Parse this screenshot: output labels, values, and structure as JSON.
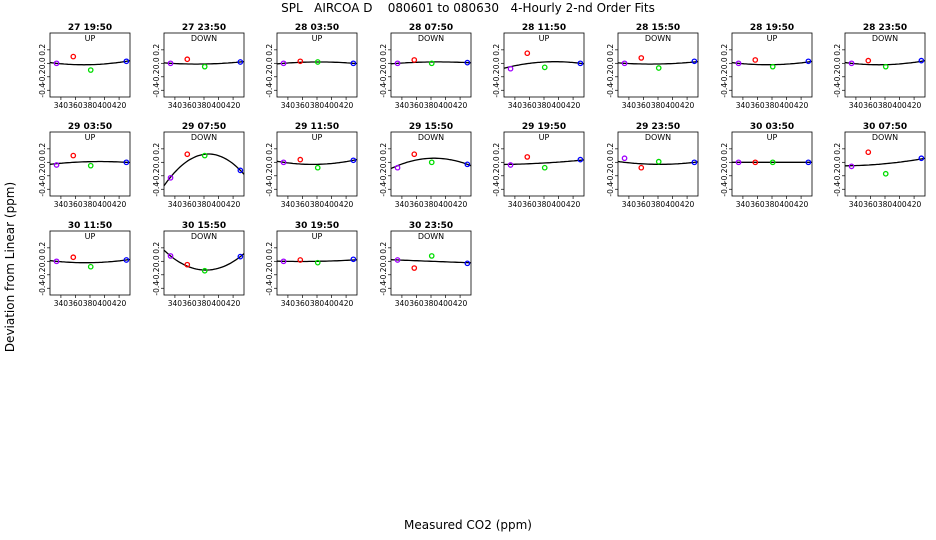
{
  "title": "SPL   AIRCOA D    080601 to 080630   4-Hourly 2-nd Order Fits",
  "xlabel": "Measured CO2 (ppm)",
  "ylabel": "Deviation from Linear (ppm)",
  "colors": {
    "p1": "#a000ff",
    "p2": "#ff0000",
    "p3": "#00dd00",
    "p4": "#0000ff",
    "curve": "#000000"
  },
  "chart_data": {
    "type": "scatter",
    "layout": "small-multiples",
    "xlim": [
      325,
      435
    ],
    "ylim": [
      -0.5,
      0.45
    ],
    "xticks": [
      340,
      360,
      380,
      400,
      420
    ],
    "yticks": [
      -0.4,
      -0.2,
      0.0,
      0.2
    ],
    "panels": [
      {
        "title": "27 19:50",
        "mode": "UP",
        "x": [
          334,
          357,
          381,
          430
        ],
        "y": [
          0.0,
          0.1,
          -0.1,
          0.03
        ],
        "curve": [
          0.0,
          -0.01,
          -0.02,
          0.03
        ]
      },
      {
        "title": "27 23:50",
        "mode": "DOWN",
        "x": [
          334,
          357,
          381,
          430
        ],
        "y": [
          0.0,
          0.06,
          -0.05,
          0.02
        ],
        "curve": [
          0.0,
          0.0,
          -0.01,
          0.02
        ]
      },
      {
        "title": "28 03:50",
        "mode": "UP",
        "x": [
          334,
          357,
          381,
          430
        ],
        "y": [
          0.0,
          0.03,
          0.02,
          0.0
        ],
        "curve": [
          0.0,
          0.02,
          0.02,
          0.0
        ]
      },
      {
        "title": "28 07:50",
        "mode": "DOWN",
        "x": [
          334,
          357,
          381,
          430
        ],
        "y": [
          0.0,
          0.05,
          0.0,
          0.01
        ],
        "curve": [
          0.0,
          0.015,
          0.02,
          0.01
        ]
      },
      {
        "title": "28 11:50",
        "mode": "UP",
        "x": [
          334,
          357,
          381,
          430
        ],
        "y": [
          -0.08,
          0.15,
          -0.06,
          0.0
        ],
        "curve": [
          -0.05,
          0.0,
          0.02,
          0.0
        ]
      },
      {
        "title": "28 15:50",
        "mode": "DOWN",
        "x": [
          334,
          357,
          381,
          430
        ],
        "y": [
          0.0,
          0.08,
          -0.07,
          0.03
        ],
        "curve": [
          0.0,
          -0.005,
          -0.01,
          0.02
        ]
      },
      {
        "title": "28 19:50",
        "mode": "UP",
        "x": [
          334,
          357,
          381,
          430
        ],
        "y": [
          0.0,
          0.05,
          -0.05,
          0.03
        ],
        "curve": [
          0.0,
          0.0,
          -0.02,
          0.02
        ]
      },
      {
        "title": "28 23:50",
        "mode": "DOWN",
        "x": [
          334,
          357,
          381,
          430
        ],
        "y": [
          0.0,
          0.04,
          -0.05,
          0.04
        ],
        "curve": [
          0.0,
          0.0,
          -0.02,
          0.03
        ]
      },
      {
        "title": "29 03:50",
        "mode": "UP",
        "x": [
          334,
          357,
          381,
          430
        ],
        "y": [
          -0.04,
          0.1,
          -0.05,
          0.0
        ],
        "curve": [
          -0.02,
          0.01,
          0.01,
          0.0
        ]
      },
      {
        "title": "29 07:50",
        "mode": "DOWN",
        "x": [
          334,
          357,
          381,
          430
        ],
        "y": [
          -0.23,
          0.12,
          0.1,
          -0.12
        ],
        "curve": [
          -0.22,
          0.05,
          0.12,
          -0.12
        ]
      },
      {
        "title": "29 11:50",
        "mode": "UP",
        "x": [
          334,
          357,
          381,
          430
        ],
        "y": [
          0.0,
          0.04,
          -0.08,
          0.03
        ],
        "curve": [
          0.0,
          -0.02,
          -0.03,
          0.03
        ]
      },
      {
        "title": "29 15:50",
        "mode": "DOWN",
        "x": [
          334,
          357,
          381,
          430
        ],
        "y": [
          -0.08,
          0.12,
          0.0,
          -0.03
        ],
        "curve": [
          -0.05,
          0.04,
          0.06,
          -0.03
        ]
      },
      {
        "title": "29 19:50",
        "mode": "UP",
        "x": [
          334,
          357,
          381,
          430
        ],
        "y": [
          -0.04,
          0.08,
          -0.08,
          0.04
        ],
        "curve": [
          -0.03,
          -0.01,
          -0.01,
          0.03
        ]
      },
      {
        "title": "29 23:50",
        "mode": "DOWN",
        "x": [
          334,
          357,
          381,
          430
        ],
        "y": [
          0.06,
          -0.08,
          0.01,
          0.0
        ],
        "curve": [
          0.0,
          -0.03,
          -0.03,
          0.0
        ]
      },
      {
        "title": "30 03:50",
        "mode": "UP",
        "x": [
          334,
          357,
          381,
          430
        ],
        "y": [
          0.0,
          0.0,
          0.0,
          0.0
        ],
        "curve": [
          0.0,
          0.0,
          0.0,
          0.0
        ]
      },
      {
        "title": "30 07:50",
        "mode": "DOWN",
        "x": [
          334,
          357,
          381,
          430
        ],
        "y": [
          -0.06,
          0.15,
          -0.17,
          0.06
        ],
        "curve": [
          -0.05,
          -0.01,
          -0.02,
          0.05
        ]
      },
      {
        "title": "30 11:50",
        "mode": "UP",
        "x": [
          334,
          357,
          381,
          430
        ],
        "y": [
          0.0,
          0.06,
          -0.08,
          0.02
        ],
        "curve": [
          0.0,
          -0.01,
          -0.02,
          0.02
        ]
      },
      {
        "title": "30 15:50",
        "mode": "DOWN",
        "x": [
          334,
          357,
          381,
          430
        ],
        "y": [
          0.08,
          -0.05,
          -0.14,
          0.07
        ],
        "curve": [
          0.08,
          -0.08,
          -0.13,
          0.07
        ]
      },
      {
        "title": "30 19:50",
        "mode": "UP",
        "x": [
          334,
          357,
          381,
          430
        ],
        "y": [
          0.0,
          0.02,
          -0.02,
          0.03
        ],
        "curve": [
          0.0,
          0.0,
          0.0,
          0.02
        ]
      },
      {
        "title": "30 23:50",
        "mode": "DOWN",
        "x": [
          334,
          357,
          381,
          430
        ],
        "y": [
          0.02,
          -0.1,
          0.08,
          -0.03
        ],
        "curve": [
          0.02,
          0.01,
          0.0,
          -0.02
        ]
      }
    ]
  }
}
